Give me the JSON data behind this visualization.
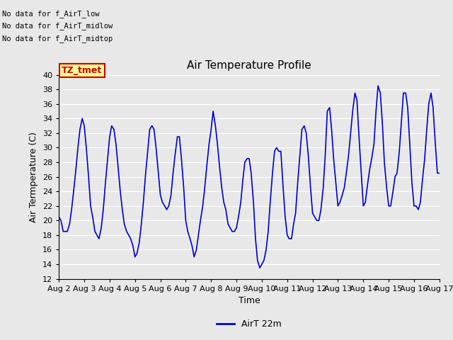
{
  "title": "Air Temperature Profile",
  "xlabel": "Time",
  "ylabel": "Air Termperature (C)",
  "ylim": [
    12,
    40
  ],
  "yticks": [
    12,
    14,
    16,
    18,
    20,
    22,
    24,
    26,
    28,
    30,
    32,
    34,
    36,
    38,
    40
  ],
  "x_labels": [
    "Aug 2",
    "Aug 3",
    "Aug 4",
    "Aug 5",
    "Aug 6",
    "Aug 7",
    "Aug 8",
    "Aug 9",
    "Aug 10",
    "Aug 11",
    "Aug 12",
    "Aug 13",
    "Aug 14",
    "Aug 15",
    "Aug 16",
    "Aug 17"
  ],
  "no_data_texts": [
    "No data for f_AirT_low",
    "No data for f_AirT_midlow",
    "No data for f_AirT_midtop"
  ],
  "tz_label": "TZ_tmet",
  "legend_label": "AirT 22m",
  "line_color": "#0000CC",
  "bg_color": "#E8E8E8",
  "grid_color": "#FFFFFF",
  "time_values": [
    0.0,
    0.08,
    0.17,
    0.33,
    0.42,
    0.5,
    0.58,
    0.67,
    0.75,
    0.83,
    0.92,
    1.0,
    1.08,
    1.17,
    1.25,
    1.33,
    1.42,
    1.5,
    1.58,
    1.67,
    1.75,
    1.83,
    1.92,
    2.0,
    2.08,
    2.17,
    2.25,
    2.33,
    2.42,
    2.5,
    2.58,
    2.67,
    2.75,
    2.83,
    2.92,
    3.0,
    3.08,
    3.17,
    3.25,
    3.33,
    3.42,
    3.5,
    3.58,
    3.67,
    3.75,
    3.83,
    3.92,
    4.0,
    4.08,
    4.17,
    4.25,
    4.33,
    4.42,
    4.5,
    4.58,
    4.67,
    4.75,
    4.83,
    4.92,
    5.0,
    5.08,
    5.17,
    5.25,
    5.33,
    5.42,
    5.5,
    5.58,
    5.67,
    5.75,
    5.83,
    5.92,
    6.0,
    6.08,
    6.17,
    6.25,
    6.33,
    6.42,
    6.5,
    6.58,
    6.67,
    6.75,
    6.83,
    6.92,
    7.0,
    7.08,
    7.17,
    7.25,
    7.33,
    7.42,
    7.5,
    7.58,
    7.67,
    7.75,
    7.83,
    7.92,
    8.0,
    8.08,
    8.17,
    8.25,
    8.33,
    8.42,
    8.5,
    8.58,
    8.67,
    8.75,
    8.83,
    8.92,
    9.0,
    9.08,
    9.17,
    9.25,
    9.33,
    9.42,
    9.5,
    9.58,
    9.67,
    9.75,
    9.83,
    9.92,
    10.0,
    10.08,
    10.17,
    10.25,
    10.33,
    10.42,
    10.5,
    10.58,
    10.67,
    10.75,
    10.83,
    10.92,
    11.0,
    11.08,
    11.17,
    11.25,
    11.33,
    11.42,
    11.5,
    11.58,
    11.67,
    11.75,
    11.83,
    11.92,
    12.0,
    12.08,
    12.17,
    12.25,
    12.33,
    12.42,
    12.5,
    12.58,
    12.67,
    12.75,
    12.83,
    12.92,
    13.0,
    13.08,
    13.17,
    13.25,
    13.33,
    13.42,
    13.5,
    13.58,
    13.67,
    13.75,
    13.83,
    13.92,
    14.0,
    14.08,
    14.17,
    14.25,
    14.33,
    14.42,
    14.5,
    14.58,
    14.67,
    14.75,
    14.83,
    14.92,
    15.0
  ],
  "temp_values": [
    20.5,
    20.0,
    18.5,
    18.5,
    19.5,
    21.5,
    24.0,
    27.0,
    30.0,
    32.5,
    34.0,
    33.0,
    30.0,
    26.0,
    22.0,
    20.5,
    18.5,
    18.0,
    17.5,
    19.0,
    21.5,
    25.0,
    28.5,
    31.5,
    33.0,
    32.5,
    30.5,
    27.5,
    24.0,
    21.5,
    19.5,
    18.5,
    18.0,
    17.5,
    16.5,
    15.0,
    15.5,
    17.0,
    19.5,
    22.5,
    26.5,
    29.5,
    32.5,
    33.0,
    32.5,
    30.0,
    26.5,
    23.5,
    22.5,
    22.0,
    21.5,
    22.0,
    23.5,
    26.5,
    29.0,
    31.5,
    31.5,
    28.5,
    24.5,
    20.0,
    18.5,
    17.5,
    16.5,
    15.0,
    16.0,
    18.0,
    20.0,
    22.0,
    24.5,
    27.5,
    30.5,
    32.5,
    35.0,
    33.0,
    30.5,
    27.5,
    24.5,
    22.5,
    21.5,
    19.5,
    19.0,
    18.5,
    18.5,
    19.0,
    20.5,
    22.5,
    25.5,
    28.0,
    28.5,
    28.5,
    26.5,
    22.5,
    17.5,
    14.5,
    13.5,
    14.0,
    14.5,
    16.0,
    18.5,
    22.5,
    26.5,
    29.5,
    30.0,
    29.5,
    29.5,
    25.0,
    20.5,
    18.0,
    17.5,
    17.5,
    19.5,
    21.0,
    25.5,
    29.0,
    32.5,
    33.0,
    32.0,
    29.0,
    24.5,
    21.0,
    20.5,
    20.0,
    20.0,
    21.5,
    24.5,
    29.0,
    35.0,
    35.5,
    32.5,
    28.5,
    25.0,
    22.0,
    22.5,
    23.5,
    24.5,
    26.5,
    29.0,
    32.0,
    35.0,
    37.5,
    36.5,
    31.5,
    26.5,
    22.0,
    22.5,
    25.0,
    27.0,
    28.5,
    30.5,
    35.0,
    38.5,
    37.5,
    33.5,
    28.0,
    24.5,
    22.0,
    22.0,
    24.0,
    26.0,
    26.5,
    29.5,
    33.5,
    37.5,
    37.5,
    35.5,
    30.5,
    25.0,
    22.0,
    22.0,
    21.5,
    22.5,
    25.5,
    28.5,
    32.5,
    36.0,
    37.5,
    35.5,
    31.0,
    26.5,
    26.5
  ]
}
